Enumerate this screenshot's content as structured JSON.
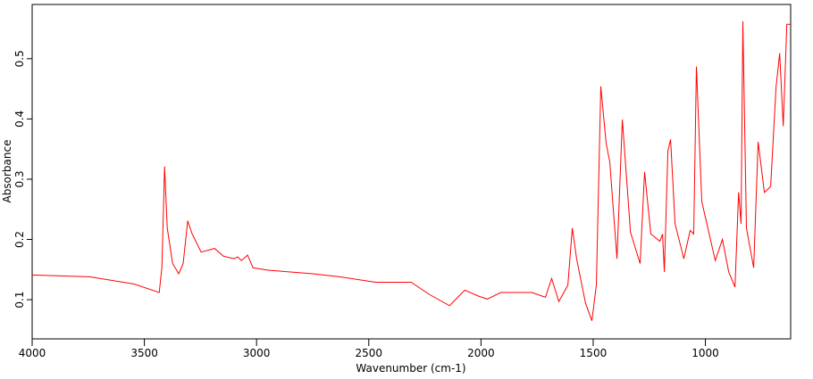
{
  "chart_data": {
    "type": "line",
    "x_label": "Wavenumber (cm-1)",
    "y_label": "Absorbance",
    "xlim": [
      4000,
      620
    ],
    "ylim": [
      0.035,
      0.59
    ],
    "xticks": [
      4000,
      3500,
      3000,
      2500,
      2000,
      1500,
      1000
    ],
    "yticks": [
      0.1,
      0.2,
      0.3,
      0.4,
      0.5
    ],
    "series": [
      {
        "color": "#ff0000",
        "x": [
          4000,
          3745,
          3546,
          3434,
          3422,
          3410,
          3398,
          3374,
          3347,
          3327,
          3307,
          3287,
          3247,
          3187,
          3147,
          3100,
          3084,
          3068,
          3040,
          3016,
          2948,
          2749,
          2630,
          2470,
          2311,
          2231,
          2140,
          2072,
          2012,
          1972,
          1912,
          1773,
          1713,
          1685,
          1653,
          1613,
          1593,
          1574,
          1534,
          1506,
          1486,
          1466,
          1442,
          1426,
          1394,
          1370,
          1334,
          1291,
          1271,
          1243,
          1203,
          1191,
          1183,
          1167,
          1155,
          1135,
          1096,
          1068,
          1052,
          1040,
          1016,
          956,
          924,
          896,
          868,
          852,
          841,
          833,
          817,
          785,
          765,
          737,
          709,
          685,
          669,
          653,
          637,
          621
        ],
        "values": [
          0.141,
          0.138,
          0.126,
          0.112,
          0.153,
          0.321,
          0.219,
          0.16,
          0.143,
          0.16,
          0.231,
          0.209,
          0.179,
          0.185,
          0.172,
          0.168,
          0.171,
          0.165,
          0.174,
          0.153,
          0.149,
          0.143,
          0.138,
          0.129,
          0.129,
          0.109,
          0.09,
          0.116,
          0.106,
          0.101,
          0.112,
          0.112,
          0.104,
          0.135,
          0.097,
          0.124,
          0.219,
          0.168,
          0.094,
          0.065,
          0.124,
          0.454,
          0.359,
          0.329,
          0.168,
          0.399,
          0.212,
          0.16,
          0.312,
          0.209,
          0.197,
          0.209,
          0.146,
          0.347,
          0.366,
          0.226,
          0.168,
          0.215,
          0.209,
          0.487,
          0.263,
          0.165,
          0.2,
          0.146,
          0.121,
          0.278,
          0.226,
          0.562,
          0.219,
          0.153,
          0.362,
          0.278,
          0.288,
          0.454,
          0.509,
          0.388,
          0.557,
          0.557
        ]
      }
    ]
  }
}
